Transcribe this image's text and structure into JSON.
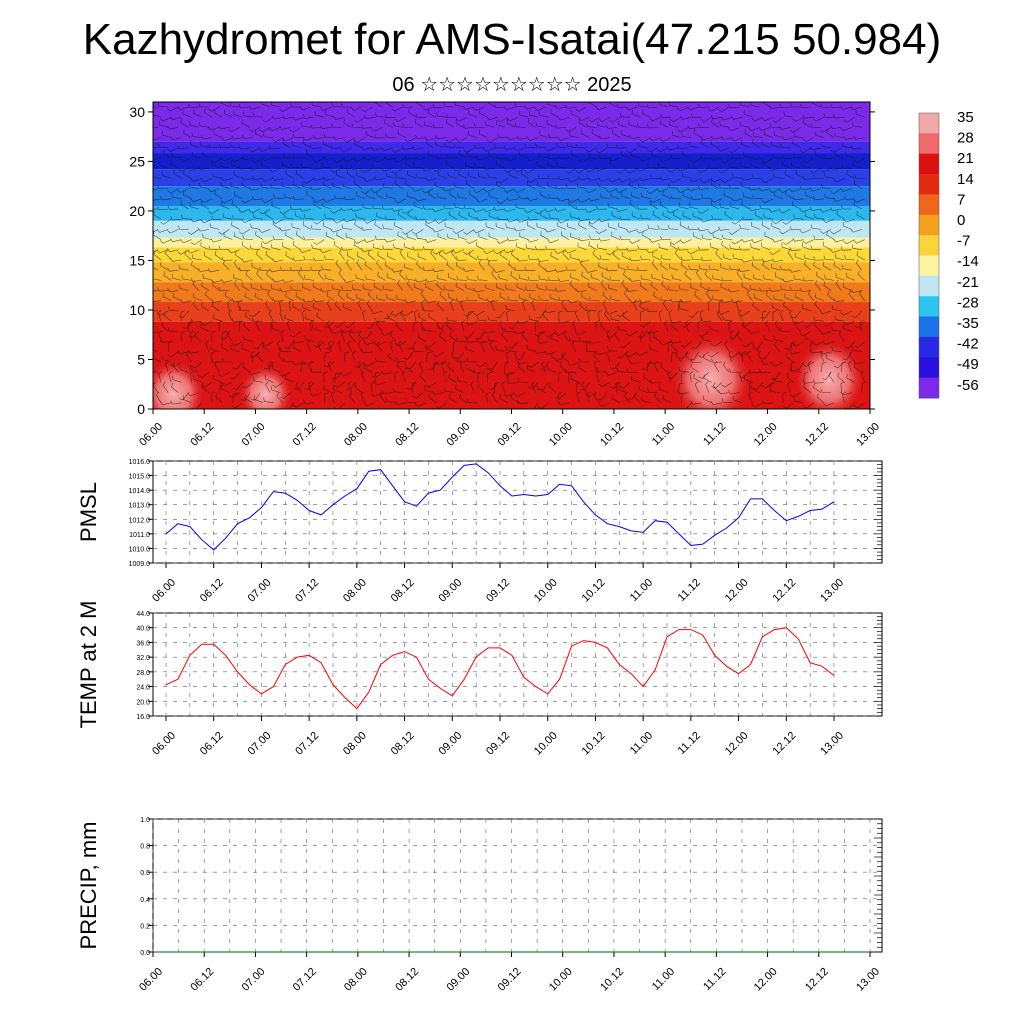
{
  "header": {
    "title": "Kazhydromet for AMS-Isatai(47.215 50.984)",
    "subtitle": "06 ☆☆☆☆☆☆☆☆☆ 2025"
  },
  "colors": {
    "pmsl_line": "#0000ff",
    "temp_line": "#ff0000",
    "precip_line": "#006400"
  },
  "chart_data": [
    {
      "type": "heatmap",
      "name_hint": "vertical cross-section with wind barbs",
      "x_ticks": [
        "06.00",
        "06.12",
        "07.00",
        "07.12",
        "08.00",
        "08.12",
        "09.00",
        "09.12",
        "10.00",
        "10.12",
        "11.00",
        "11.12",
        "12.00",
        "12.12",
        "13.00"
      ],
      "y_ticks": [
        0,
        5,
        10,
        15,
        20,
        25,
        30
      ],
      "ylim": [
        0,
        31
      ],
      "colorbar_ticks": [
        "35",
        "28",
        "21",
        "14",
        "7",
        "0",
        "-7",
        "-14",
        "-21",
        "-28",
        "-35",
        "-42",
        "-49",
        "-56"
      ],
      "colorbar_colors": [
        "#f2a8a8",
        "#ef6a6a",
        "#dd1010",
        "#e52a10",
        "#f0661a",
        "#f6a020",
        "#f9d53a",
        "#fbf3a0",
        "#bfe6f2",
        "#2cc4f0",
        "#1a73e8",
        "#2a2ae6",
        "#2a10e0",
        "#7a2ae8"
      ],
      "bands": [
        {
          "top": 31,
          "bottom": 27,
          "color": "#7a2ae8"
        },
        {
          "top": 27,
          "bottom": 25.8,
          "color": "#3e2ae8"
        },
        {
          "top": 25.8,
          "bottom": 24.2,
          "color": "#1520cc"
        },
        {
          "top": 24.2,
          "bottom": 22.5,
          "color": "#2a40e6"
        },
        {
          "top": 22.5,
          "bottom": 20.5,
          "color": "#1f78e4"
        },
        {
          "top": 20.5,
          "bottom": 19,
          "color": "#2cb8ef"
        },
        {
          "top": 19,
          "bottom": 17.3,
          "color": "#bfe6f2"
        },
        {
          "top": 17.3,
          "bottom": 16.3,
          "color": "#fbf0a0"
        },
        {
          "top": 16.3,
          "bottom": 14.8,
          "color": "#fbd83a"
        },
        {
          "top": 14.8,
          "bottom": 12.8,
          "color": "#f8b028"
        },
        {
          "top": 12.8,
          "bottom": 10.8,
          "color": "#f07a1c"
        },
        {
          "top": 10.8,
          "bottom": 8.8,
          "color": "#e8401a"
        },
        {
          "top": 8.8,
          "bottom": 0,
          "color": "#dc1414"
        }
      ],
      "warm_cores": [
        {
          "x": 0.4,
          "y": 1.5,
          "r": 3.5
        },
        {
          "x": 2.2,
          "y": 1.5,
          "r": 3.0
        },
        {
          "x": 10.9,
          "y": 3.0,
          "r": 4.5
        },
        {
          "x": 13.2,
          "y": 3.0,
          "r": 4.0
        }
      ]
    },
    {
      "type": "line",
      "ylabel": "PMSL",
      "x_ticks": [
        "06.00",
        "06.12",
        "07.00",
        "07.12",
        "08.00",
        "08.12",
        "09.00",
        "09.12",
        "10.00",
        "10.12",
        "11.00",
        "11.12",
        "12.00",
        "12.12",
        "13.00"
      ],
      "y_ticks": [
        "1009.0",
        "1010.0",
        "1011.0",
        "1012.0",
        "1013.0",
        "1014.0",
        "1015.0",
        "1016.0"
      ],
      "ylim": [
        1009,
        1016
      ],
      "x_step_hours": 3,
      "series": [
        {
          "values": [
            1011.0,
            1011.7,
            1011.5,
            1010.6,
            1009.9,
            1010.7,
            1011.7,
            1012.1,
            1012.8,
            1013.9,
            1013.8,
            1013.3,
            1012.6,
            1012.3,
            1013.0,
            1013.6,
            1014.1,
            1015.3,
            1015.4,
            1014.3,
            1013.2,
            1012.9,
            1013.8,
            1014.0,
            1014.9,
            1015.7,
            1015.8,
            1015.2,
            1014.3,
            1013.6,
            1013.7,
            1013.6,
            1013.7,
            1014.4,
            1014.3,
            1013.2,
            1012.3,
            1011.7,
            1011.5,
            1011.2,
            1011.1,
            1011.9,
            1011.8,
            1011.0,
            1010.2,
            1010.3,
            1010.9,
            1011.4,
            1012.1,
            1013.4,
            1013.4,
            1012.6,
            1011.9,
            1012.2,
            1012.6,
            1012.7,
            1013.2
          ]
        }
      ]
    },
    {
      "type": "line",
      "ylabel": "TEMP at 2 M",
      "x_ticks": [
        "06.00",
        "06.12",
        "07.00",
        "07.12",
        "08.00",
        "08.12",
        "09.00",
        "09.12",
        "10.00",
        "10.12",
        "11.00",
        "11.12",
        "12.00",
        "12.12",
        "13.00"
      ],
      "y_ticks": [
        "16.0",
        "20.0",
        "24.0",
        "28.0",
        "32.0",
        "36.0",
        "40.0",
        "44.0"
      ],
      "ylim": [
        16,
        44
      ],
      "x_step_hours": 3,
      "series": [
        {
          "values": [
            24.5,
            26.0,
            32.5,
            35.5,
            35.5,
            32.5,
            28.0,
            24.5,
            22.0,
            24.0,
            30.0,
            32.0,
            32.5,
            30.5,
            24.5,
            21.0,
            18.0,
            22.5,
            30.0,
            32.5,
            33.5,
            32.0,
            26.0,
            23.5,
            21.5,
            26.0,
            32.0,
            34.5,
            34.5,
            32.5,
            26.5,
            24.0,
            22.0,
            26.0,
            35.0,
            36.5,
            36.0,
            34.5,
            30.0,
            27.5,
            24.0,
            28.5,
            37.5,
            39.5,
            39.5,
            38.0,
            32.5,
            29.5,
            27.5,
            30.0,
            37.5,
            39.5,
            40.0,
            37.0,
            30.5,
            29.5,
            27.0
          ]
        }
      ]
    },
    {
      "type": "line",
      "ylabel": "PRECIP, mm",
      "x_ticks": [
        "06.00",
        "06.12",
        "07.00",
        "07.12",
        "08.00",
        "08.12",
        "09.00",
        "09.12",
        "10.00",
        "10.12",
        "11.00",
        "11.12",
        "12.00",
        "12.12",
        "13.00"
      ],
      "y_ticks": [
        "0.0",
        "0.2",
        "0.4",
        "0.6",
        "0.8",
        "1.0"
      ],
      "ylim": [
        0,
        1
      ],
      "series": [
        {
          "values": [
            0,
            0,
            0,
            0,
            0,
            0,
            0,
            0,
            0,
            0,
            0,
            0,
            0,
            0,
            0,
            0,
            0,
            0,
            0,
            0,
            0,
            0,
            0,
            0,
            0,
            0,
            0,
            0,
            0,
            0,
            0,
            0,
            0,
            0,
            0,
            0,
            0,
            0,
            0,
            0,
            0,
            0,
            0,
            0,
            0,
            0,
            0,
            0,
            0,
            0,
            0,
            0,
            0,
            0,
            0,
            0,
            0
          ]
        }
      ]
    }
  ]
}
